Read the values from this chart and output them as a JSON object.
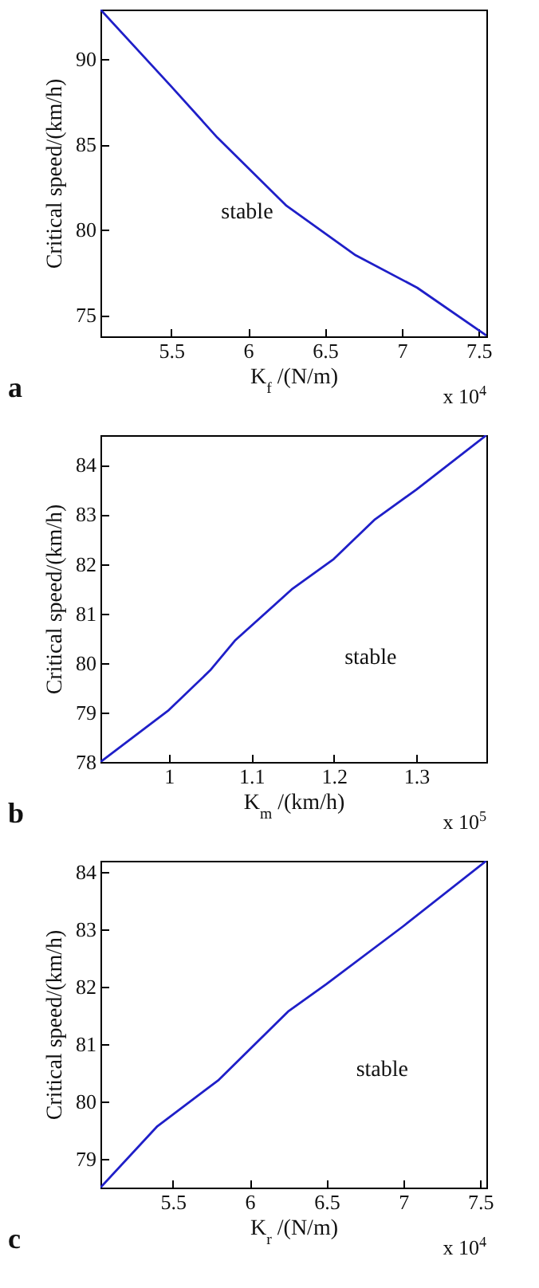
{
  "chart_data": [
    {
      "type": "line",
      "xlabel": "K$_{f}$ /(N/m)",
      "ylabel": "Critical speed/(km/h)",
      "x": [
        5.04,
        5.5,
        5.8,
        6.25,
        6.7,
        7.1,
        7.55
      ],
      "series": [
        {
          "color": "#1f1fc8",
          "values": [
            92.9,
            88.4,
            85.4,
            81.4,
            78.5,
            76.6,
            73.8
          ]
        }
      ],
      "xlim": [
        5.04,
        7.55
      ],
      "ylim": [
        73.75,
        92.9
      ],
      "xticks": [
        5.5,
        6,
        6.5,
        7,
        7.5
      ],
      "yticks": [
        75,
        80,
        85,
        90
      ],
      "grid": false,
      "annotations": [
        "stable",
        "a",
        "x 10$^{4}$"
      ]
    },
    {
      "type": "line",
      "xlabel": "K$_{m}$ /(km/h)",
      "ylabel": "Critical speed/(km/h)",
      "x": [
        0.917,
        1.0,
        1.05,
        1.08,
        1.15,
        1.2,
        1.25,
        1.3,
        1.385
      ],
      "series": [
        {
          "color": "#1f1fc8",
          "values": [
            78,
            79.05,
            79.85,
            80.45,
            81.5,
            82.1,
            82.9,
            83.5,
            84.6
          ]
        }
      ],
      "xlim": [
        0.917,
        1.385
      ],
      "ylim": [
        78,
        84.6
      ],
      "xticks": [
        1,
        1.1,
        1.2,
        1.3
      ],
      "yticks": [
        78,
        79,
        80,
        81,
        82,
        83,
        84
      ],
      "grid": false,
      "annotations": [
        "stable",
        "b",
        "x 10$^{5}$"
      ]
    },
    {
      "type": "line",
      "xlabel": "K$_{r}$ /(N/m)",
      "ylabel": "Critical speed/(km/h)",
      "x": [
        5.03,
        5.4,
        5.8,
        6.25,
        6.5,
        7.0,
        7.54
      ],
      "series": [
        {
          "color": "#1f1fc8",
          "values": [
            78.5,
            79.57,
            80.38,
            81.57,
            82.05,
            83.06,
            84.2
          ]
        }
      ],
      "xlim": [
        5.03,
        7.54
      ],
      "ylim": [
        78.5,
        84.2
      ],
      "xticks": [
        5.5,
        6,
        6.5,
        7,
        7.5
      ],
      "yticks": [
        79,
        80,
        81,
        82,
        83,
        84
      ],
      "grid": false,
      "annotations": [
        "stable",
        "c",
        "x 10$^{4}$"
      ]
    }
  ]
}
